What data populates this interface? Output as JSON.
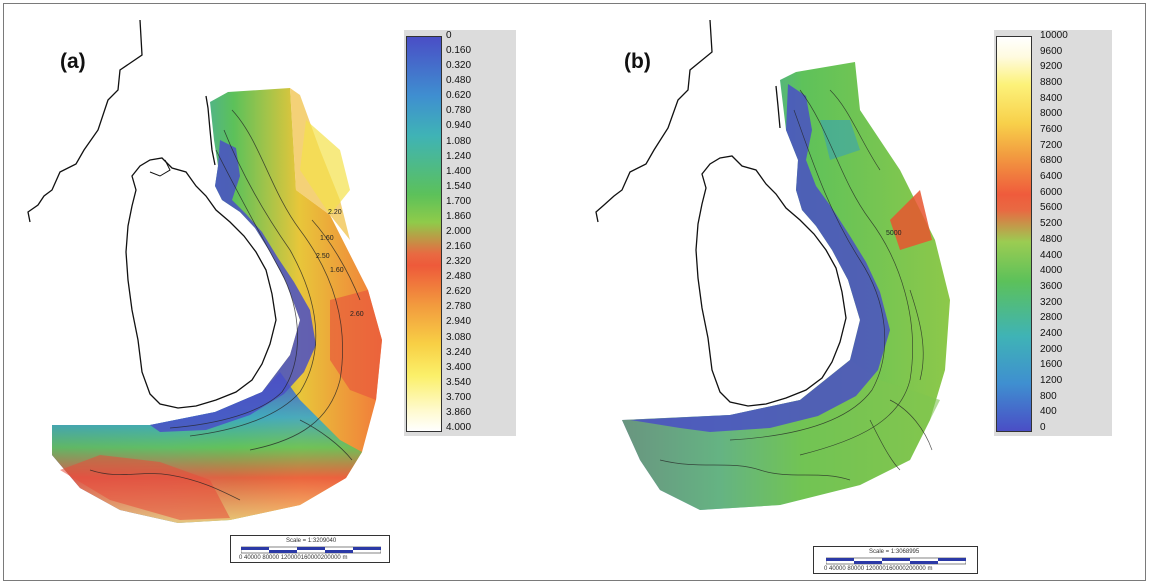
{
  "panels": [
    {
      "label": "(a)",
      "legend_ticks": [
        "0",
        "0.160",
        "0.320",
        "0.480",
        "0.620",
        "0.780",
        "0.940",
        "1.080",
        "1.240",
        "1.400",
        "1.540",
        "1.700",
        "1.860",
        "2.000",
        "2.160",
        "2.320",
        "2.480",
        "2.620",
        "2.780",
        "2.940",
        "3.080",
        "3.240",
        "3.400",
        "3.540",
        "3.700",
        "3.860",
        "4.000"
      ],
      "scale_title": "Scale = 1:3209040",
      "scale_numbers": "0   40000  80000 120000160000200000 m",
      "contour_labels": [
        "2.20",
        "1.60",
        "2.50",
        "1.60",
        "2.60"
      ],
      "colors": {
        "low": "#4646c8",
        "high": "#ffffff"
      }
    },
    {
      "label": "(b)",
      "legend_ticks": [
        "10000",
        "9600",
        "9200",
        "8800",
        "8400",
        "8000",
        "7600",
        "7200",
        "6800",
        "6400",
        "6000",
        "5600",
        "5200",
        "4800",
        "4400",
        "4000",
        "3600",
        "3200",
        "2800",
        "2400",
        "2000",
        "1600",
        "1200",
        "800",
        "400",
        "0"
      ],
      "scale_title": "Scale = 1:3068995",
      "scale_numbers": "0   40000  80000 120000160000200000 m",
      "contour_labels": [
        "5000"
      ],
      "colors": {
        "low": "#4646c8",
        "high": "#ffffff"
      }
    }
  ]
}
